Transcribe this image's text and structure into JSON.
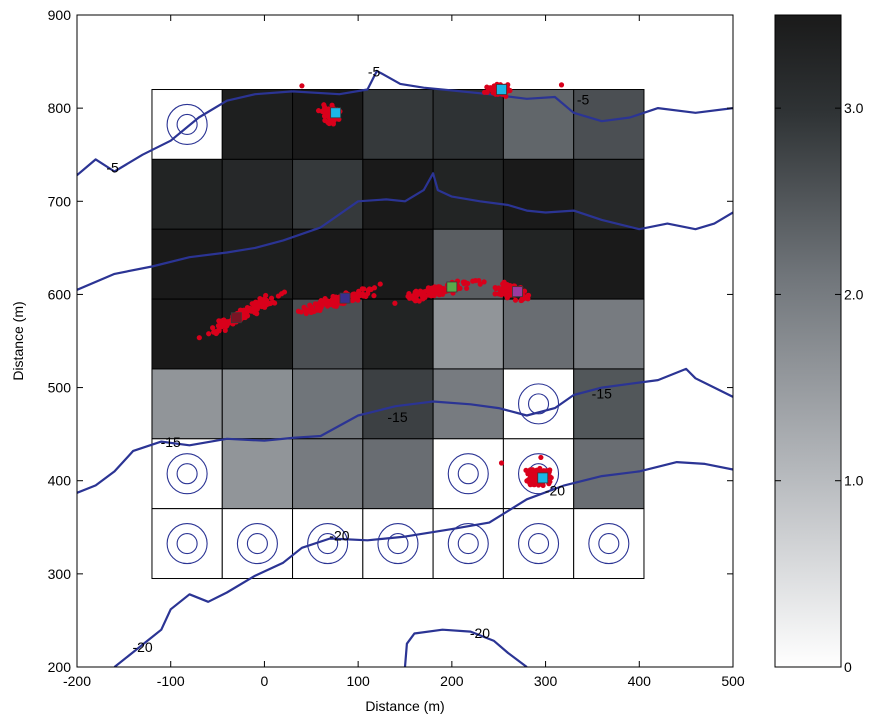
{
  "chart_data": {
    "type": "heatmap",
    "title": "",
    "xlabel": "Distance (m)",
    "ylabel": "Distance (m)",
    "xlim": [
      -200,
      500
    ],
    "ylim": [
      200,
      900
    ],
    "xticks": [
      "-200",
      "-100",
      "0",
      "100",
      "200",
      "300",
      "400",
      "500"
    ],
    "yticks": [
      "200",
      "300",
      "400",
      "500",
      "600",
      "700",
      "800",
      "900"
    ],
    "grid": {
      "x_edges": [
        -120,
        -45,
        30,
        105,
        180,
        255,
        330,
        405
      ],
      "y_edges": [
        295,
        370,
        445,
        520,
        595,
        670,
        745,
        820
      ],
      "values_top_to_bottom": [
        [
          null,
          3.4,
          3.5,
          2.9,
          3.0,
          2.3,
          2.6
        ],
        [
          3.3,
          3.2,
          2.9,
          3.5,
          3.3,
          3.5,
          3.2
        ],
        [
          3.5,
          3.4,
          3.5,
          3.5,
          2.4,
          3.3,
          3.5
        ],
        [
          3.5,
          3.4,
          2.6,
          3.3,
          1.6,
          2.2,
          2.0
        ],
        [
          1.6,
          1.7,
          2.1,
          2.8,
          2.0,
          null,
          2.5
        ],
        [
          null,
          1.6,
          2.0,
          2.2,
          null,
          null,
          2.2
        ],
        [
          null,
          null,
          null,
          null,
          null,
          null,
          null
        ]
      ]
    },
    "colorbar": {
      "min": 0,
      "max": 3.5,
      "tick_labels": [
        "0",
        "1.0",
        "2.0",
        "3.0"
      ],
      "tick_values": [
        0,
        1.0,
        2.0,
        3.0
      ]
    },
    "contours": {
      "color": "#2b3494",
      "lines": [
        {
          "level": -5,
          "points": [
            [
              -200,
              728
            ],
            [
              -180,
              745
            ],
            [
              -160,
              732
            ],
            [
              -130,
              750
            ],
            [
              -100,
              765
            ],
            [
              -70,
              790
            ],
            [
              -40,
              808
            ],
            [
              -10,
              815
            ],
            [
              30,
              818
            ],
            [
              80,
              815
            ],
            [
              110,
              820
            ],
            [
              120,
              840
            ],
            [
              145,
              826
            ],
            [
              170,
              822
            ],
            [
              210,
              818
            ],
            [
              240,
              815
            ],
            [
              280,
              810
            ],
            [
              310,
              812
            ],
            [
              330,
              795
            ],
            [
              360,
              786
            ],
            [
              390,
              790
            ],
            [
              420,
              800
            ],
            [
              460,
              795
            ],
            [
              500,
              800
            ]
          ]
        },
        {
          "level": -5,
          "points": [
            [
              -200,
              605
            ],
            [
              -160,
              622
            ],
            [
              -120,
              630
            ],
            [
              -80,
              640
            ],
            [
              -40,
              645
            ],
            [
              -10,
              650
            ],
            [
              20,
              658
            ],
            [
              60,
              672
            ],
            [
              100,
              700
            ],
            [
              130,
              702
            ],
            [
              150,
              700
            ],
            [
              170,
              712
            ],
            [
              180,
              730
            ],
            [
              185,
              712
            ],
            [
              200,
              705
            ],
            [
              230,
              700
            ],
            [
              260,
              696
            ],
            [
              280,
              690
            ],
            [
              300,
              688
            ],
            [
              330,
              690
            ],
            [
              360,
              680
            ],
            [
              400,
              670
            ],
            [
              430,
              676
            ],
            [
              460,
              670
            ],
            [
              480,
              676
            ],
            [
              500,
              688
            ]
          ]
        },
        {
          "level": -15,
          "points": [
            [
              -200,
              387
            ],
            [
              -180,
              395
            ],
            [
              -160,
              410
            ],
            [
              -140,
              432
            ],
            [
              -110,
              442
            ],
            [
              -80,
              438
            ],
            [
              -40,
              445
            ],
            [
              0,
              443
            ],
            [
              30,
              446
            ],
            [
              60,
              448
            ],
            [
              100,
              470
            ],
            [
              140,
              480
            ],
            [
              180,
              485
            ],
            [
              220,
              482
            ],
            [
              250,
              478
            ],
            [
              280,
              470
            ],
            [
              310,
              478
            ],
            [
              330,
              492
            ],
            [
              360,
              500
            ],
            [
              390,
              504
            ],
            [
              420,
              508
            ],
            [
              450,
              520
            ],
            [
              460,
              510
            ],
            [
              500,
              490
            ]
          ]
        },
        {
          "level": -20,
          "points": [
            [
              -160,
              200
            ],
            [
              -140,
              216
            ],
            [
              -110,
              240
            ],
            [
              -100,
              262
            ],
            [
              -80,
              278
            ],
            [
              -60,
              270
            ],
            [
              -40,
              280
            ],
            [
              -10,
              298
            ],
            [
              20,
              312
            ],
            [
              40,
              328
            ],
            [
              70,
              338
            ],
            [
              110,
              336
            ],
            [
              150,
              340
            ],
            [
              200,
              348
            ],
            [
              240,
              355
            ],
            [
              280,
              380
            ],
            [
              320,
              395
            ],
            [
              360,
              405
            ],
            [
              400,
              410
            ],
            [
              440,
              420
            ],
            [
              470,
              418
            ],
            [
              500,
              412
            ]
          ]
        },
        {
          "level": -20,
          "points": [
            [
              150,
              200
            ],
            [
              152,
              225
            ],
            [
              160,
              236
            ],
            [
              190,
              240
            ],
            [
              220,
              238
            ],
            [
              245,
              228
            ],
            [
              260,
              215
            ],
            [
              280,
              200
            ]
          ]
        }
      ],
      "labels": [
        {
          "text": "-5",
          "x": 117,
          "y": 838
        },
        {
          "text": "-5",
          "x": -162,
          "y": 735
        },
        {
          "text": "-5",
          "x": 340,
          "y": 808
        },
        {
          "text": "-15",
          "x": 142,
          "y": 467
        },
        {
          "text": "-15",
          "x": -100,
          "y": 440
        },
        {
          "text": "-15",
          "x": 360,
          "y": 492
        },
        {
          "text": "-20",
          "x": 80,
          "y": 340
        },
        {
          "text": "-20",
          "x": 310,
          "y": 388
        },
        {
          "text": "-20",
          "x": 230,
          "y": 235
        },
        {
          "text": "-20",
          "x": -130,
          "y": 220
        }
      ]
    },
    "scatter_clusters": [
      {
        "cx": 70,
        "cy": 793,
        "spread_x": 8,
        "spread_y": 8,
        "n": 60,
        "slope": 0,
        "marker": {
          "x": 76,
          "y": 795,
          "color": "#1bb7e6"
        }
      },
      {
        "cx": 250,
        "cy": 820,
        "spread_x": 10,
        "spread_y": 5,
        "n": 50,
        "slope": 0,
        "marker": {
          "x": 253,
          "y": 820,
          "color": "#1bb7e6"
        }
      },
      {
        "cx": -20,
        "cy": 580,
        "spread_x": 34,
        "spread_y": 5,
        "n": 120,
        "slope": 0.55,
        "marker": {
          "x": -30,
          "y": 575,
          "color": "#7a1424"
        }
      },
      {
        "cx": 75,
        "cy": 592,
        "spread_x": 34,
        "spread_y": 5,
        "n": 130,
        "slope": 0.3,
        "marker": {
          "x": 86,
          "y": 596,
          "color": "#3a2f8c"
        }
      },
      {
        "cx": 185,
        "cy": 604,
        "spread_x": 34,
        "spread_y": 5,
        "n": 110,
        "slope": 0.22,
        "marker": {
          "x": 200,
          "y": 608,
          "color": "#5aa84a"
        }
      },
      {
        "cx": 265,
        "cy": 603,
        "spread_x": 13,
        "spread_y": 8,
        "n": 70,
        "slope": -0.2,
        "marker": {
          "x": 270,
          "y": 603,
          "color": "#9a3aa0"
        }
      },
      {
        "cx": 293,
        "cy": 403,
        "spread_x": 12,
        "spread_y": 9,
        "n": 110,
        "slope": 0,
        "marker": {
          "x": 297,
          "y": 403,
          "color": "#1bb7e6"
        }
      }
    ],
    "scatter_outliers": [
      [
        40,
        824
      ],
      [
        317,
        825
      ],
      [
        253,
        419
      ],
      [
        295,
        425
      ]
    ],
    "scatter_color": "#d9001b"
  }
}
